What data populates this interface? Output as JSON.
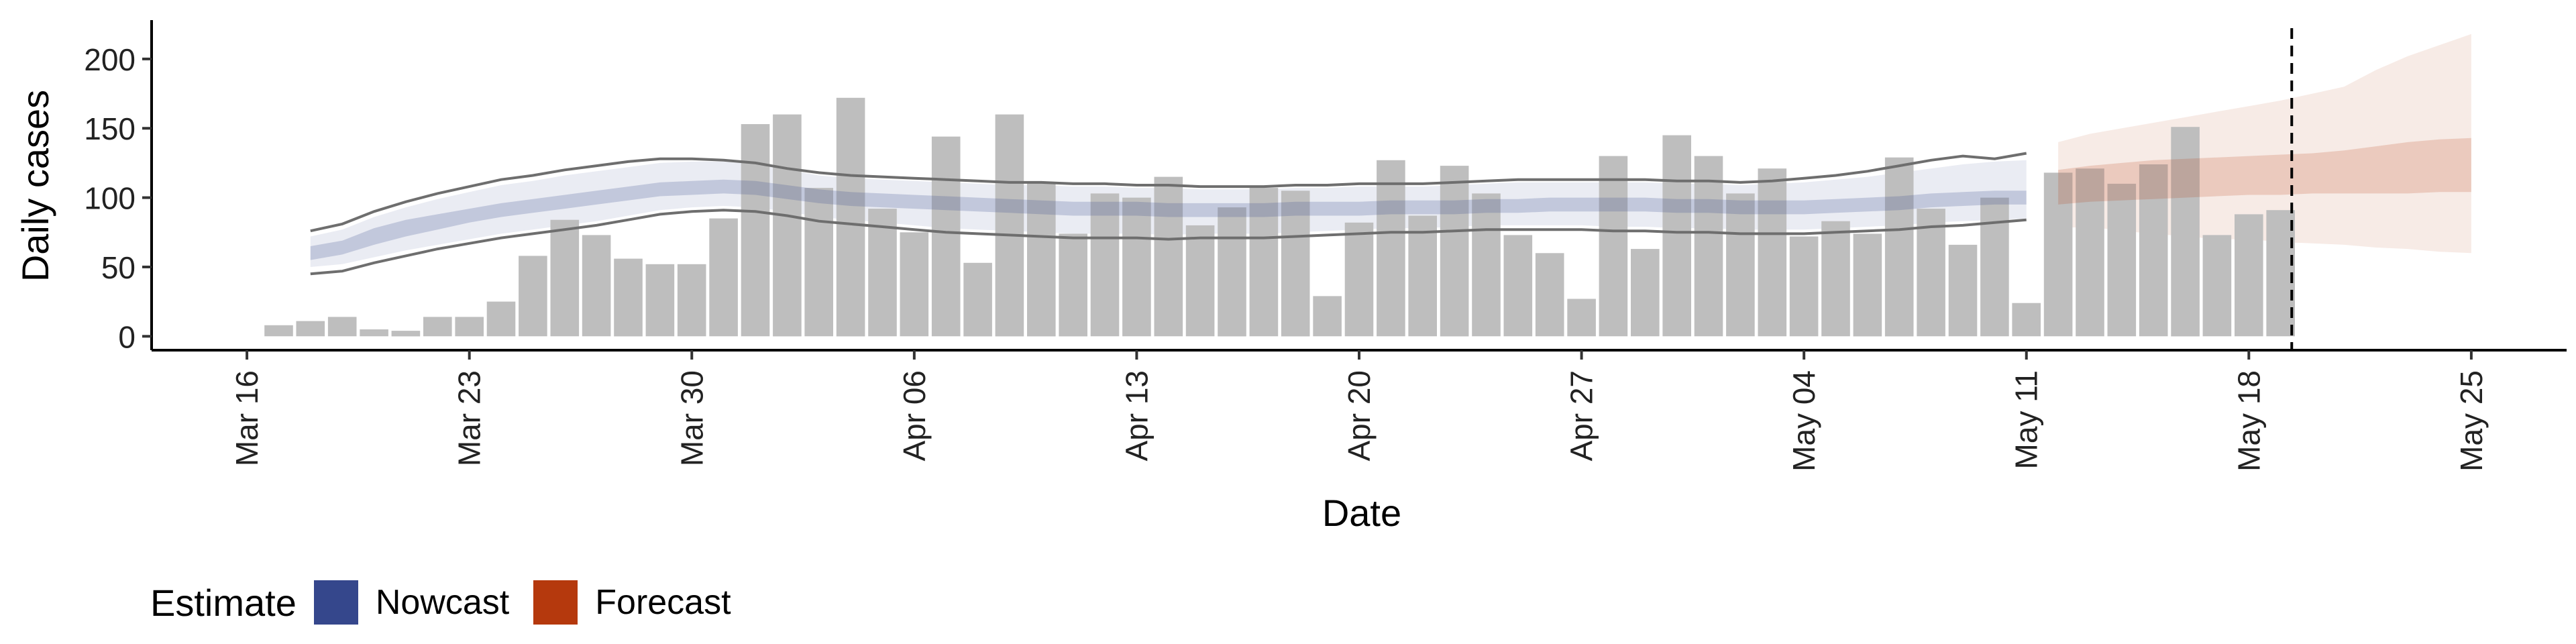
{
  "chart_data": {
    "type": "bar",
    "xlabel": "Date",
    "ylabel": "Daily cases",
    "x_ticks": [
      "Mar 16",
      "Mar 23",
      "Mar 30",
      "Apr 06",
      "Apr 13",
      "Apr 20",
      "Apr 27",
      "May 04",
      "May 11",
      "May 18",
      "May 25"
    ],
    "y_ticks": [
      0,
      50,
      100,
      150,
      200
    ],
    "ylim": [
      -10,
      228
    ],
    "xlim": [
      "2020-03-13",
      "2020-05-28"
    ],
    "grid": false,
    "legend_position": "bottom-left",
    "observed_cases": {
      "dates_start": "2020-03-17",
      "dates_end": "2020-05-19",
      "values": [
        8,
        11,
        14,
        5,
        4,
        14,
        14,
        25,
        58,
        84,
        73,
        56,
        52,
        52,
        85,
        153,
        160,
        107,
        172,
        92,
        75,
        144,
        53,
        160,
        111,
        74,
        103,
        100,
        115,
        80,
        93,
        107,
        105,
        29,
        82,
        127,
        87,
        123,
        103,
        73,
        60,
        27,
        130,
        63,
        145,
        130,
        103,
        121,
        72,
        83,
        74,
        129,
        92,
        66,
        100,
        24,
        118,
        121,
        110,
        124,
        151,
        73,
        88,
        91
      ],
      "color": "#bebebe"
    },
    "nowcast": {
      "dates_start": "2020-03-18",
      "dates_end": "2020-05-11",
      "median": [
        60,
        64,
        72,
        78,
        82,
        87,
        91,
        94,
        97,
        100,
        103,
        106,
        107,
        108,
        107,
        104,
        101,
        99,
        98,
        97,
        96,
        95,
        94,
        93,
        92,
        92,
        92,
        91,
        91,
        91,
        91,
        92,
        92,
        92,
        93,
        93,
        93,
        94,
        94,
        95,
        95,
        95,
        95,
        94,
        94,
        93,
        93,
        93,
        94,
        95,
        96,
        98,
        99,
        100,
        100
      ],
      "lower_50": [
        55,
        59,
        66,
        72,
        77,
        82,
        86,
        89,
        92,
        95,
        98,
        101,
        102,
        103,
        102,
        99,
        96,
        94,
        93,
        92,
        91,
        90,
        89,
        88,
        87,
        87,
        87,
        86,
        86,
        86,
        86,
        87,
        87,
        87,
        88,
        88,
        88,
        89,
        89,
        90,
        90,
        90,
        90,
        89,
        89,
        88,
        88,
        88,
        89,
        90,
        91,
        93,
        94,
        95,
        95
      ],
      "upper_50": [
        65,
        69,
        78,
        84,
        88,
        92,
        96,
        99,
        102,
        105,
        108,
        111,
        112,
        113,
        112,
        109,
        106,
        104,
        103,
        102,
        101,
        100,
        99,
        98,
        97,
        97,
        97,
        96,
        96,
        96,
        96,
        97,
        97,
        97,
        98,
        98,
        98,
        99,
        99,
        100,
        100,
        100,
        100,
        99,
        99,
        98,
        98,
        98,
        99,
        100,
        101,
        103,
        104,
        105,
        105
      ],
      "lower_90": [
        50,
        52,
        57,
        62,
        66,
        70,
        74,
        77,
        80,
        83,
        87,
        91,
        93,
        94,
        93,
        90,
        86,
        84,
        82,
        80,
        78,
        77,
        76,
        75,
        74,
        74,
        74,
        73,
        74,
        74,
        74,
        75,
        76,
        77,
        78,
        78,
        79,
        80,
        80,
        80,
        80,
        79,
        79,
        78,
        78,
        77,
        77,
        77,
        78,
        79,
        80,
        82,
        83,
        84,
        85
      ],
      "upper_90": [
        72,
        77,
        86,
        93,
        99,
        104,
        109,
        112,
        116,
        119,
        122,
        125,
        126,
        126,
        124,
        120,
        116,
        114,
        113,
        112,
        111,
        110,
        109,
        109,
        108,
        108,
        107,
        107,
        106,
        106,
        106,
        107,
        107,
        108,
        108,
        108,
        109,
        110,
        111,
        111,
        111,
        111,
        111,
        110,
        110,
        109,
        110,
        111,
        113,
        115,
        118,
        121,
        124,
        126,
        127
      ],
      "lower_outline": [
        45,
        47,
        53,
        58,
        63,
        67,
        71,
        74,
        77,
        80,
        84,
        88,
        90,
        91,
        90,
        87,
        83,
        81,
        79,
        77,
        75,
        74,
        73,
        72,
        71,
        71,
        71,
        70,
        71,
        71,
        71,
        72,
        73,
        74,
        75,
        75,
        76,
        77,
        77,
        77,
        77,
        76,
        76,
        75,
        75,
        74,
        74,
        74,
        75,
        76,
        77,
        79,
        80,
        82,
        84
      ],
      "upper_outline": [
        76,
        81,
        90,
        97,
        103,
        108,
        113,
        116,
        120,
        123,
        126,
        128,
        128,
        127,
        125,
        121,
        118,
        116,
        115,
        114,
        113,
        112,
        111,
        111,
        110,
        110,
        109,
        109,
        108,
        108,
        108,
        109,
        109,
        110,
        110,
        110,
        111,
        112,
        113,
        113,
        113,
        113,
        113,
        112,
        112,
        111,
        112,
        114,
        116,
        119,
        123,
        127,
        130,
        128,
        132
      ]
    },
    "forecast": {
      "dates_start": "2020-05-12",
      "dates_end": "2020-05-25",
      "median": [
        112,
        113,
        115,
        116,
        117,
        118,
        118,
        119,
        119,
        120,
        120,
        120,
        121,
        121
      ],
      "lower_50": [
        95,
        97,
        98,
        99,
        100,
        101,
        102,
        102,
        103,
        103,
        103,
        103,
        104,
        104
      ],
      "upper_50": [
        120,
        123,
        125,
        127,
        128,
        129,
        130,
        131,
        132,
        134,
        137,
        140,
        142,
        143
      ],
      "lower_90": [
        78,
        79,
        76,
        74,
        72,
        70,
        70,
        68,
        67,
        66,
        64,
        63,
        61,
        60
      ],
      "upper_90": [
        140,
        146,
        150,
        154,
        158,
        162,
        166,
        170,
        175,
        180,
        192,
        202,
        210,
        218
      ]
    },
    "vline_date": "2020-05-19",
    "series": [
      {
        "name": "Nowcast",
        "color": "#35478c"
      },
      {
        "name": "Forecast",
        "color": "#b5390d"
      }
    ]
  },
  "legend": {
    "title": "Estimate",
    "items": [
      {
        "label": "Nowcast",
        "color": "#35478c"
      },
      {
        "label": "Forecast",
        "color": "#b5390d"
      }
    ]
  }
}
